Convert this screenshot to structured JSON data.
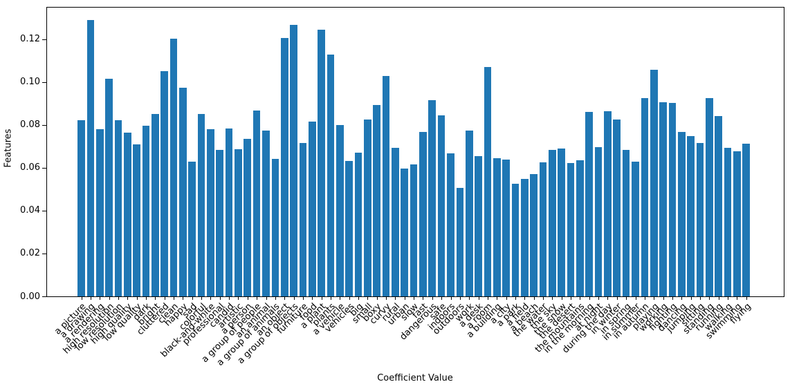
{
  "chart_data": {
    "type": "bar",
    "title": "",
    "xlabel": "Coefficient Value",
    "ylabel": "Features",
    "bar_color": "#1f77b4",
    "grid": false,
    "legend_position": "none",
    "ylim": [
      0,
      0.135
    ],
    "ytick_labels": [
      "0.00",
      "0.02",
      "0.04",
      "0.06",
      "0.08",
      "0.10",
      "0.12"
    ],
    "ytick_values": [
      0.0,
      0.02,
      0.04,
      0.06,
      0.08,
      0.1,
      0.12
    ],
    "categories": [
      "a picture",
      "a drawing",
      "a rendering",
      "high resolution",
      "low resolution",
      "high quality",
      "low quality",
      "dark",
      "bright",
      "cluttered",
      "clean",
      "happy",
      "sad",
      "colorful",
      "black-and-white",
      "professional",
      "candid",
      "artistic",
      "a person",
      "a group of people",
      "an animal",
      "a group of animals",
      "an object",
      "a group of objects",
      "furniture",
      "food",
      "a plant",
      "plants",
      "a vehicle",
      "vehicles",
      "big",
      "small",
      "boxy",
      "curvy",
      "rural",
      "urban",
      "slow",
      "fast",
      "dangerous",
      "safe",
      "indoors",
      "outdoors",
      "work",
      "a desk",
      "a room",
      "a building",
      "a city",
      "a park",
      "a field",
      "a beach",
      "the water",
      "the sky",
      "the snow",
      "the desert",
      "the mountains",
      "in the morning",
      "at night",
      "during the day",
      "in winter",
      "in spring",
      "in summer",
      "in autumn",
      "playing",
      "working",
      "fighting",
      "dancing",
      "jumping",
      "sitting",
      "standing",
      "running",
      "walking",
      "swimming",
      "flying"
    ],
    "values": [
      0.0822,
      0.129,
      0.0779,
      0.1016,
      0.0821,
      0.0765,
      0.0708,
      0.0797,
      0.0849,
      0.1051,
      0.1201,
      0.0973,
      0.0628,
      0.0849,
      0.0779,
      0.0682,
      0.0784,
      0.0687,
      0.0735,
      0.0868,
      0.0774,
      0.0641,
      0.1204,
      0.1265,
      0.0716,
      0.0816,
      0.1244,
      0.1128,
      0.08,
      0.0632,
      0.067,
      0.0826,
      0.0894,
      0.1029,
      0.0693,
      0.0596,
      0.0615,
      0.0768,
      0.0915,
      0.0845,
      0.0666,
      0.0507,
      0.0772,
      0.0655,
      0.1071,
      0.0644,
      0.0638,
      0.0525,
      0.0548,
      0.0571,
      0.0625,
      0.0683,
      0.0689,
      0.0623,
      0.0636,
      0.0859,
      0.0695,
      0.0865,
      0.0825,
      0.0682,
      0.0627,
      0.0926,
      0.1058,
      0.0906,
      0.0903,
      0.0768,
      0.0749,
      0.0715,
      0.0924,
      0.0841,
      0.0692,
      0.0676,
      0.0711
    ]
  }
}
